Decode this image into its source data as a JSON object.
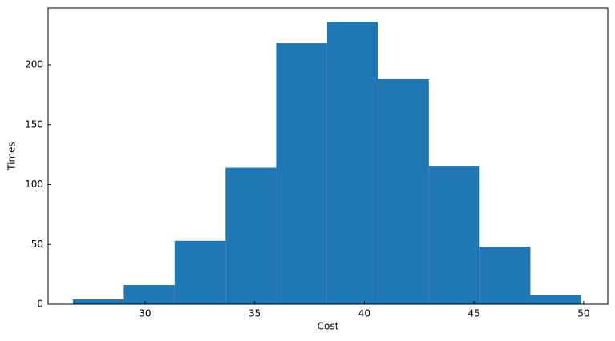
{
  "chart_data": {
    "type": "histogram",
    "xlabel": "Cost",
    "ylabel": "Times",
    "bins": [
      26.71,
      29.03,
      31.35,
      33.67,
      35.98,
      38.3,
      40.62,
      42.94,
      45.26,
      47.57,
      49.89
    ],
    "values": [
      4,
      16,
      53,
      114,
      218,
      236,
      188,
      115,
      48,
      8
    ],
    "color": "#1f77b4",
    "xlim": [
      25.58,
      51.1
    ],
    "xticks": [
      30,
      35,
      40,
      45,
      50
    ],
    "ylim": [
      0,
      247.5
    ],
    "yticks": [
      0,
      50,
      100,
      150,
      200
    ]
  }
}
